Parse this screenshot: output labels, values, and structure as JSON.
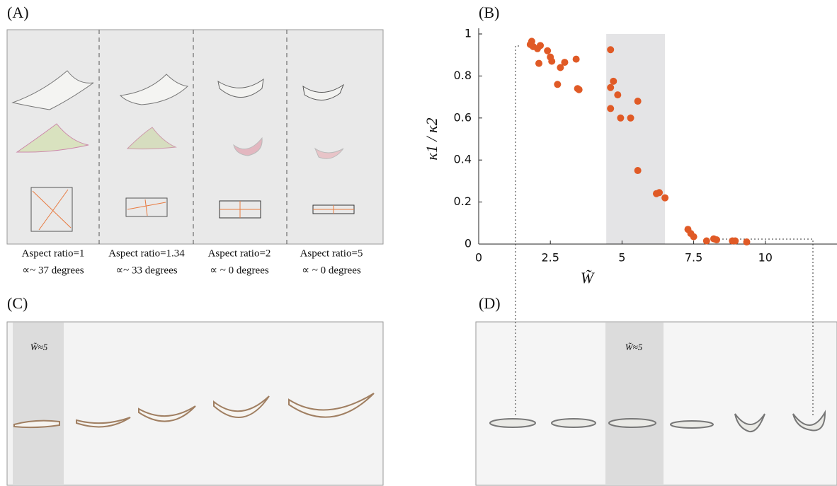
{
  "panels": {
    "a": {
      "label": "(A)",
      "captions": [
        {
          "ratio": "Aspect ratio=1",
          "angle": "∝~ 37 degrees"
        },
        {
          "ratio": "Aspect ratio=1.34",
          "angle": "∝~ 33 degrees"
        },
        {
          "ratio": "Aspect ratio=2",
          "angle": "∝ ~ 0 degrees"
        },
        {
          "ratio": "Aspect ratio=5",
          "angle": "∝ ~ 0 degrees"
        }
      ]
    },
    "b": {
      "label": "(B)"
    },
    "c": {
      "label": "(C)",
      "inset": "W̃≈5"
    },
    "d": {
      "label": "(D)",
      "inset": "W̃≈5"
    }
  },
  "chart_data": {
    "type": "scatter",
    "xlabel": "W̃",
    "ylabel": "κ1 / κ2",
    "color": "#e05a26",
    "x": [
      1.8,
      1.85,
      1.9,
      2.05,
      2.1,
      2.15,
      2.4,
      2.5,
      2.55,
      2.75,
      2.85,
      3.0,
      3.4,
      3.45,
      3.5,
      4.6,
      4.6,
      4.7,
      4.6,
      4.85,
      4.95,
      5.3,
      5.55,
      5.55,
      6.2,
      6.3,
      6.5,
      7.3,
      7.4,
      7.5,
      7.95,
      8.2,
      8.3,
      8.85,
      8.95,
      9.35
    ],
    "values": [
      0.95,
      0.965,
      0.94,
      0.93,
      0.86,
      0.945,
      0.92,
      0.89,
      0.87,
      0.76,
      0.84,
      0.865,
      0.88,
      0.74,
      0.735,
      0.925,
      0.745,
      0.775,
      0.645,
      0.71,
      0.6,
      0.6,
      0.68,
      0.35,
      0.24,
      0.245,
      0.22,
      0.07,
      0.05,
      0.035,
      0.015,
      0.025,
      0.02,
      0.015,
      0.015,
      0.01
    ],
    "xlim": [
      0,
      12.5
    ],
    "ylim": [
      0,
      1
    ],
    "xticks": [
      0,
      2.5,
      5,
      7.5,
      10
    ],
    "yticks": [
      0,
      0.2,
      0.4,
      0.6,
      0.8,
      1
    ],
    "band": [
      4.45,
      6.5
    ],
    "band_color": "#e4e4e6"
  }
}
